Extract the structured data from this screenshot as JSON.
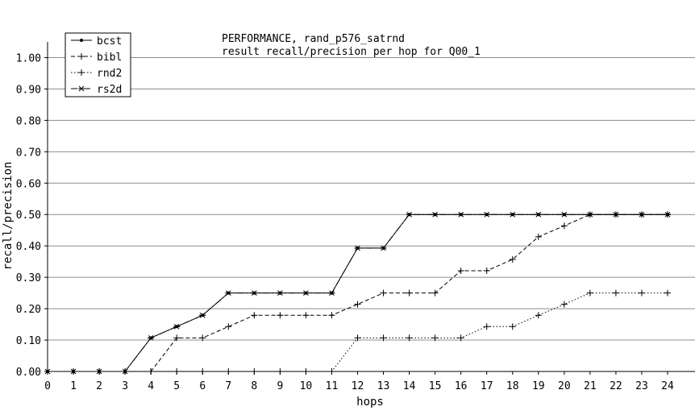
{
  "chart_data": {
    "type": "line",
    "title": "PERFORMANCE, rand_p576_satrnd",
    "subtitle": "result recall/precision per hop for Q00_1",
    "xlabel": "hops",
    "ylabel": "recall/precision",
    "xlim": [
      0,
      24
    ],
    "ylim": [
      0,
      1.05
    ],
    "x": [
      0,
      1,
      2,
      3,
      4,
      5,
      6,
      7,
      8,
      9,
      10,
      11,
      12,
      13,
      14,
      15,
      16,
      17,
      18,
      19,
      20,
      21,
      22,
      23,
      24
    ],
    "x_ticks": [
      "0",
      "1",
      "2",
      "3",
      "4",
      "5",
      "6",
      "7",
      "8",
      "9",
      "10",
      "11",
      "12",
      "13",
      "14",
      "15",
      "16",
      "17",
      "18",
      "19",
      "20",
      "21",
      "22",
      "23",
      "24"
    ],
    "y_ticks": [
      {
        "value": 0.0,
        "label": "0.00"
      },
      {
        "value": 0.1,
        "label": "0.10"
      },
      {
        "value": 0.2,
        "label": "0.20"
      },
      {
        "value": 0.3,
        "label": "0.30"
      },
      {
        "value": 0.4,
        "label": "0.40"
      },
      {
        "value": 0.5,
        "label": "0.50"
      },
      {
        "value": 0.6,
        "label": "0.60"
      },
      {
        "value": 0.7,
        "label": "0.70"
      },
      {
        "value": 0.8,
        "label": "0.80"
      },
      {
        "value": 0.9,
        "label": "0.90"
      },
      {
        "value": 1.0,
        "label": "1.00"
      }
    ],
    "grid": "horizontal",
    "legend_position": "top-left",
    "series": [
      {
        "name": "bcst",
        "marker": "dot",
        "dash": "solid",
        "color": "#000000",
        "values": [
          0,
          0,
          0,
          0,
          0.107,
          0.143,
          0.179,
          0.25,
          0.25,
          0.25,
          0.25,
          0.25,
          0.393,
          0.393,
          0.5,
          0.5,
          0.5,
          0.5,
          0.5,
          0.5,
          0.5,
          0.5,
          0.5,
          0.5,
          0.5
        ]
      },
      {
        "name": "bibl",
        "marker": "plus",
        "dash": "dashed",
        "color": "#000000",
        "values": [
          0,
          0,
          0,
          0,
          0,
          0.107,
          0.107,
          0.143,
          0.179,
          0.179,
          0.179,
          0.179,
          0.214,
          0.25,
          0.25,
          0.25,
          0.321,
          0.321,
          0.357,
          0.429,
          0.464,
          0.5,
          0.5,
          0.5,
          0.5
        ]
      },
      {
        "name": "rnd2",
        "marker": "plus",
        "dash": "dotted",
        "color": "#000000",
        "values": [
          0,
          0,
          0,
          0,
          0,
          0,
          0,
          0,
          0,
          0,
          0,
          0,
          0.107,
          0.107,
          0.107,
          0.107,
          0.107,
          0.143,
          0.143,
          0.179,
          0.214,
          0.25,
          0.25,
          0.25,
          0.25
        ]
      },
      {
        "name": "rs2d",
        "marker": "star",
        "dash": "dashdot",
        "color": "#000000",
        "values": [
          0,
          0,
          0,
          0,
          0.107,
          0.143,
          0.179,
          0.25,
          0.25,
          0.25,
          0.25,
          0.25,
          0.393,
          0.393,
          0.5,
          0.5,
          0.5,
          0.5,
          0.5,
          0.5,
          0.5,
          0.5,
          0.5,
          0.5,
          0.5
        ]
      }
    ]
  }
}
